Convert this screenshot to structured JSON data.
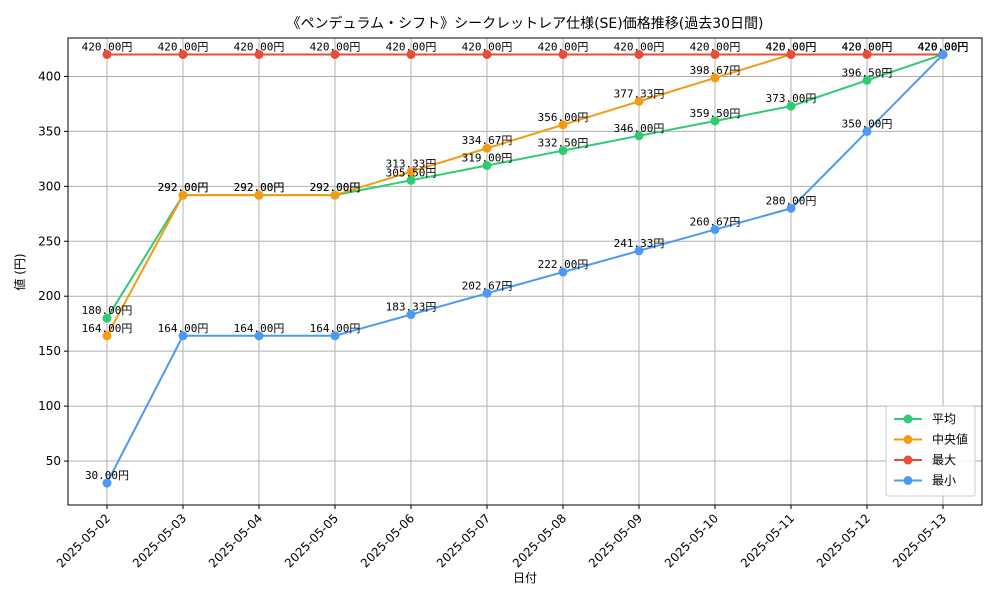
{
  "chart_data": {
    "type": "line",
    "title": "《ペンデュラム・シフト》シークレットレア仕様(SE)価格推移(過去30日間)",
    "xlabel": "日付",
    "ylabel": "値 (円)",
    "ylim": [
      10,
      435
    ],
    "yticks": [
      50,
      100,
      150,
      200,
      250,
      300,
      350,
      400
    ],
    "grid": true,
    "legend_position": "bottom-right",
    "label_suffix": "円",
    "categories": [
      "2025-05-02",
      "2025-05-03",
      "2025-05-04",
      "2025-05-05",
      "2025-05-06",
      "2025-05-07",
      "2025-05-08",
      "2025-05-09",
      "2025-05-10",
      "2025-05-11",
      "2025-05-12",
      "2025-05-13"
    ],
    "series": [
      {
        "name": "平均",
        "color": "#2ecc71",
        "values": [
          180.0,
          292.0,
          292.0,
          292.0,
          305.5,
          319.0,
          332.5,
          346.0,
          359.5,
          373.0,
          396.5,
          420.0
        ]
      },
      {
        "name": "中央値",
        "color": "#f39c12",
        "values": [
          164.0,
          292.0,
          292.0,
          292.0,
          313.33,
          334.67,
          356.0,
          377.33,
          398.67,
          420.0,
          420.0,
          420.0
        ]
      },
      {
        "name": "最大",
        "color": "#e74c3c",
        "values": [
          420.0,
          420.0,
          420.0,
          420.0,
          420.0,
          420.0,
          420.0,
          420.0,
          420.0,
          420.0,
          420.0,
          420.0
        ]
      },
      {
        "name": "最小",
        "color": "#4a9af5",
        "values": [
          30.0,
          164.0,
          164.0,
          164.0,
          183.33,
          202.67,
          222.0,
          241.33,
          260.67,
          280.0,
          350.0,
          420.0
        ]
      }
    ]
  }
}
